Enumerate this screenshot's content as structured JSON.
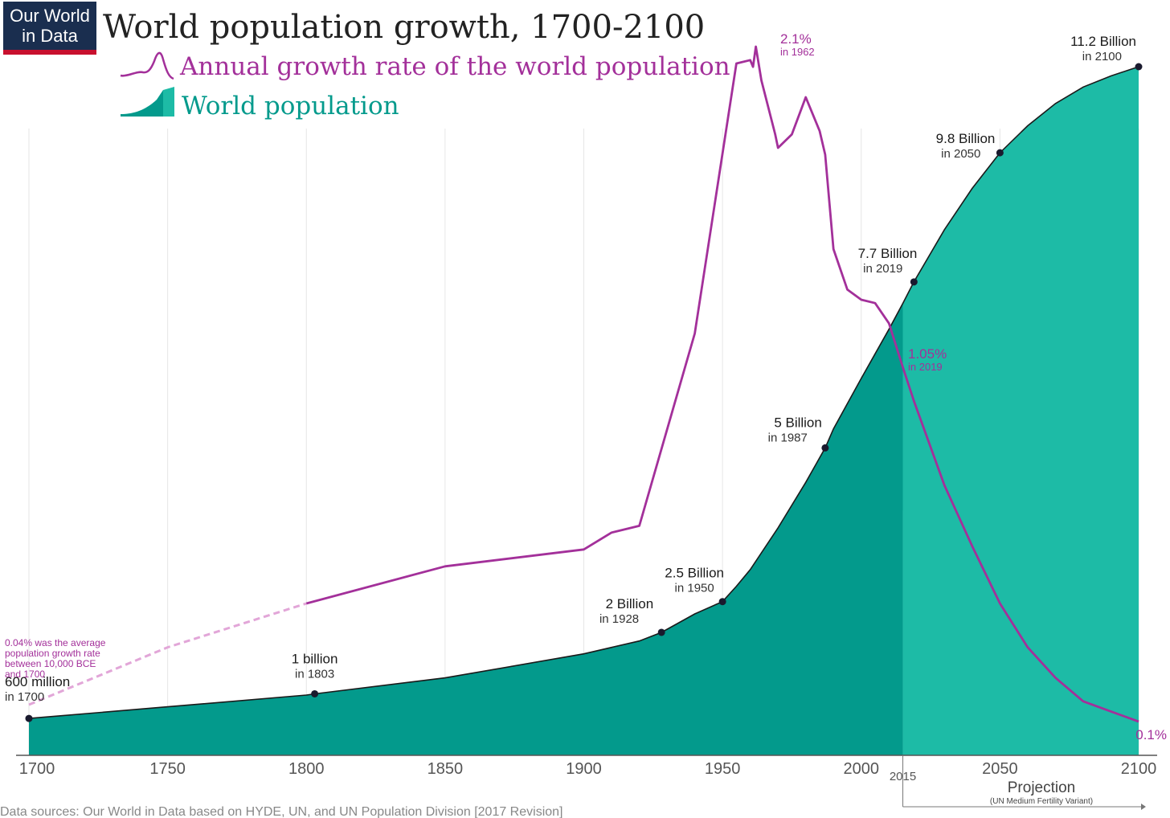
{
  "logo": {
    "line1": "Our World",
    "line2": "in Data",
    "bg": "#1a2e4f",
    "accent": "#c8102e"
  },
  "title": "World population growth, 1700-2100",
  "legend": {
    "growth_label": "Annual growth rate of the world population",
    "population_label": "World population"
  },
  "colors": {
    "growth": "#a3309a",
    "population_historic": "#039a8c",
    "population_projection": "#1dbba6",
    "axis": "#444444",
    "grid": "#e6e6e6",
    "text": "#222222",
    "muted": "#777777"
  },
  "source": "Data sources: Our World in Data based on HYDE, UN, and UN Population Division [2017 Revision]",
  "chart_data": {
    "type": "area",
    "xlim": [
      1700,
      2100
    ],
    "x_ticks": [
      1700,
      1750,
      1800,
      1850,
      1900,
      1950,
      2000,
      2050,
      2100
    ],
    "projection_start": 2015,
    "projection_label": "Projection",
    "projection_sublabel": "(UN Medium Fertility Variant)",
    "population_series": {
      "name": "World population",
      "unit": "billion",
      "ylim": [
        0,
        11.8
      ],
      "x": [
        1700,
        1750,
        1800,
        1803,
        1850,
        1900,
        1920,
        1928,
        1940,
        1950,
        1955,
        1960,
        1970,
        1980,
        1987,
        1990,
        2000,
        2010,
        2015,
        2019,
        2030,
        2040,
        2050,
        2060,
        2070,
        2080,
        2090,
        2100
      ],
      "values": [
        0.6,
        0.79,
        0.98,
        1.0,
        1.26,
        1.65,
        1.86,
        2.0,
        2.3,
        2.5,
        2.75,
        3.02,
        3.7,
        4.44,
        5.0,
        5.31,
        6.13,
        6.93,
        7.35,
        7.7,
        8.55,
        9.22,
        9.8,
        10.24,
        10.6,
        10.87,
        11.05,
        11.2
      ]
    },
    "growth_series": {
      "name": "Annual growth rate of the world population",
      "unit": "%",
      "ylim": [
        0,
        2.2
      ],
      "dashed": {
        "x": [
          1700,
          1750,
          1800
        ],
        "values": [
          0.15,
          0.32,
          0.45
        ]
      },
      "x": [
        1800,
        1850,
        1900,
        1910,
        1920,
        1940,
        1955,
        1960,
        1961,
        1962,
        1964,
        1969,
        1970,
        1975,
        1980,
        1985,
        1987,
        1990,
        1995,
        2000,
        2005,
        2010,
        2015,
        2019,
        2030,
        2040,
        2050,
        2060,
        2070,
        2080,
        2090,
        2100
      ],
      "values": [
        0.45,
        0.56,
        0.61,
        0.66,
        0.68,
        1.25,
        2.05,
        2.06,
        2.04,
        2.1,
        2.0,
        1.84,
        1.8,
        1.84,
        1.95,
        1.85,
        1.78,
        1.5,
        1.38,
        1.35,
        1.34,
        1.28,
        1.15,
        1.05,
        0.8,
        0.62,
        0.45,
        0.32,
        0.23,
        0.16,
        0.13,
        0.1
      ]
    },
    "population_annotations": [
      {
        "x": 1700,
        "value": 0.6,
        "label": "600 million",
        "sub": "in 1700"
      },
      {
        "x": 1803,
        "value": 1.0,
        "label": "1 billion",
        "sub": "in 1803"
      },
      {
        "x": 1928,
        "value": 2.0,
        "label": "2 Billion",
        "sub": "in 1928"
      },
      {
        "x": 1950,
        "value": 2.5,
        "label": "2.5 Billion",
        "sub": "in 1950"
      },
      {
        "x": 1987,
        "value": 5.0,
        "label": "5 Billion",
        "sub": "in 1987"
      },
      {
        "x": 2019,
        "value": 7.7,
        "label": "7.7 Billion",
        "sub": "in 2019"
      },
      {
        "x": 2050,
        "value": 9.8,
        "label": "9.8 Billion",
        "sub": "in 2050"
      },
      {
        "x": 2100,
        "value": 11.2,
        "label": "11.2 Billion",
        "sub": "in 2100"
      }
    ],
    "growth_annotations": [
      {
        "x": 1962,
        "value": 2.1,
        "label": "2.1%",
        "sub": "in 1962"
      },
      {
        "x": 2019,
        "value": 1.05,
        "label": "1.05%",
        "sub": "in 2019"
      },
      {
        "x": 2100,
        "value": 0.1,
        "label": "0.1%",
        "sub": ""
      }
    ],
    "note": [
      "0.04% was the average",
      "population growth rate",
      "between 10,000 BCE",
      "and 1700"
    ]
  }
}
